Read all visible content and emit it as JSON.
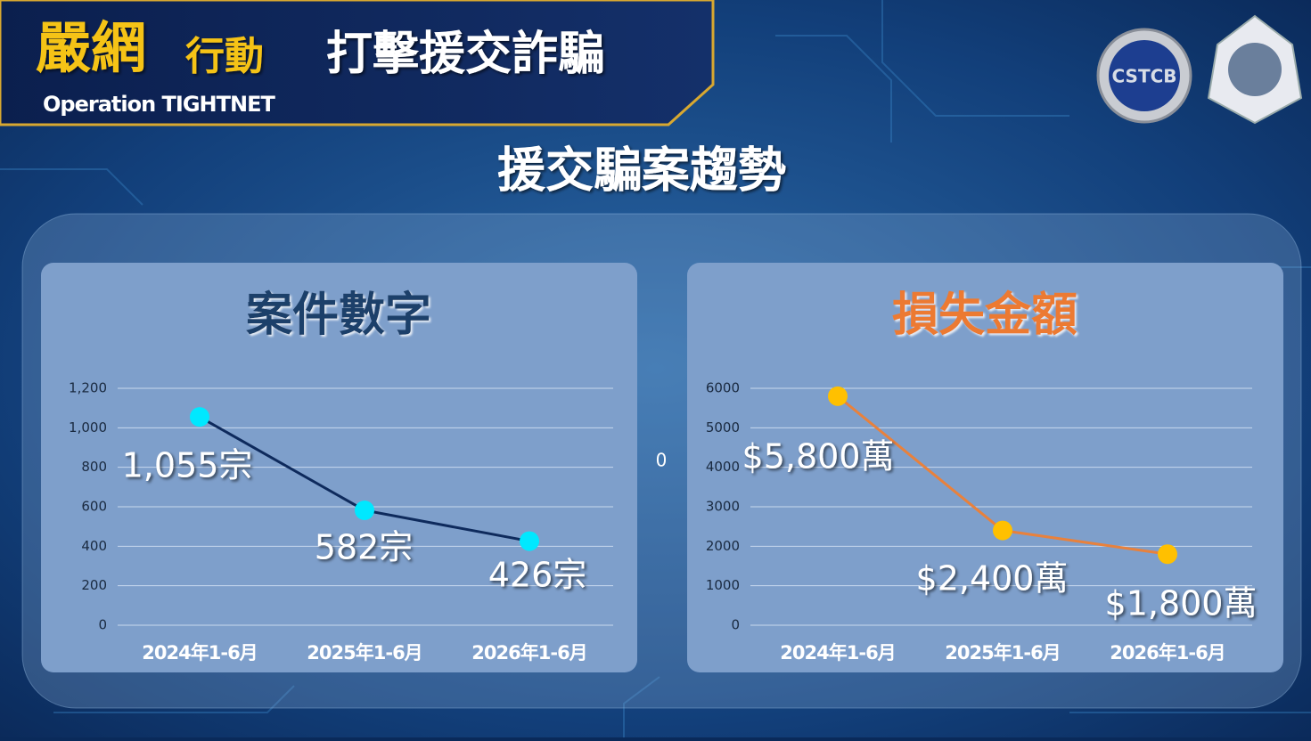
{
  "header": {
    "brand_main": "嚴網",
    "brand_sub": "行動",
    "headline": "打擊援交詐騙",
    "operation": "Operation TIGHTNET",
    "logo_text": "CSTCB"
  },
  "title": "援交騙案趨勢",
  "center_note": "0",
  "chart_data": [
    {
      "type": "line",
      "title": "案件數字",
      "categories": [
        "2024年1-6月",
        "2025年1-6月",
        "2026年1-6月"
      ],
      "values": [
        1055,
        582,
        426
      ],
      "value_labels": [
        "1,055宗",
        "582宗",
        "426宗"
      ],
      "color": "#0e2a5c",
      "marker_color": "#00e8ff",
      "title_color": "#1f3f6a",
      "ylim": [
        0,
        1200
      ],
      "yticks": [
        0,
        200,
        400,
        600,
        800,
        {
          "value": 1000,
          "label": "1,000"
        },
        {
          "value": 1200,
          "label": "1,200"
        }
      ],
      "grid": true
    },
    {
      "type": "line",
      "title": "損失金額",
      "categories": [
        "2024年1-6月",
        "2025年1-6月",
        "2026年1-6月"
      ],
      "values": [
        5800,
        2400,
        1800
      ],
      "value_labels": [
        "$5,800萬",
        "$2,400萬",
        "$1,800萬"
      ],
      "color": "#e8813c",
      "marker_color": "#ffc000",
      "title_color": "#ec7a32",
      "ylim": [
        0,
        6000
      ],
      "yticks": [
        0,
        1000,
        2000,
        3000,
        4000,
        5000,
        6000
      ],
      "grid": true
    }
  ]
}
